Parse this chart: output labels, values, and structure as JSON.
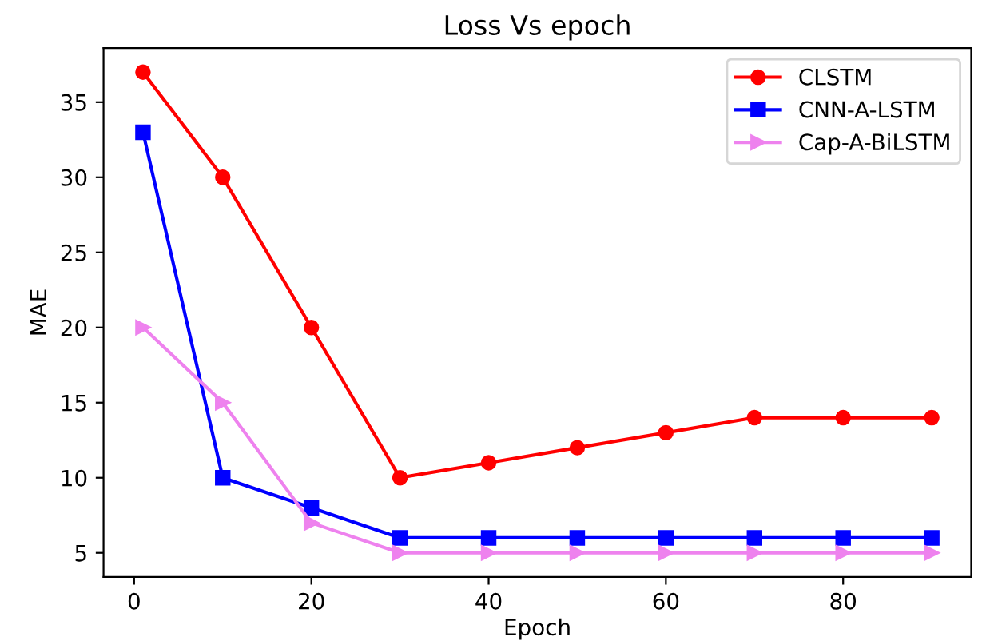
{
  "chart_data": {
    "type": "line",
    "title": "Loss Vs epoch",
    "xlabel": "Epoch",
    "ylabel": "MAE",
    "x": [
      1,
      10,
      20,
      30,
      40,
      50,
      60,
      70,
      80,
      90
    ],
    "series": [
      {
        "name": "CLSTM",
        "color": "#ff0000",
        "marker": "circle",
        "values": [
          37,
          30,
          20,
          10,
          11,
          12,
          13,
          14,
          14,
          14
        ]
      },
      {
        "name": "CNN-A-LSTM",
        "color": "#0000ff",
        "marker": "square",
        "values": [
          33,
          10,
          8,
          6,
          6,
          6,
          6,
          6,
          6,
          6
        ]
      },
      {
        "name": "Cap-A-BiLSTM",
        "color": "#ee82ee",
        "marker": "triangle",
        "values": [
          20,
          15,
          7,
          5,
          5,
          5,
          5,
          5,
          5,
          5
        ]
      }
    ],
    "xlim": [
      -3.45,
      94.45
    ],
    "ylim": [
      3.4,
      38.6
    ],
    "xticks": [
      0,
      20,
      40,
      60,
      80
    ],
    "yticks": [
      5,
      10,
      15,
      20,
      25,
      30,
      35
    ],
    "grid": false,
    "legend": "top right",
    "line_style": "solid"
  }
}
